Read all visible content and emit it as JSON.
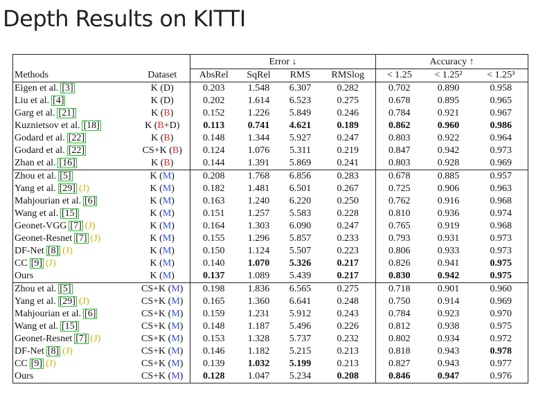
{
  "title": "Depth Results on KITTI",
  "table": {
    "group_headers": [
      "Error ↓",
      "Accuracy ↑"
    ],
    "columns": [
      "Methods",
      "Dataset",
      "AbsRel",
      "SqRel",
      "RMS",
      "RMSlog",
      "< 1.25",
      "< 1.25²",
      "< 1.25³"
    ],
    "label_colors": {
      "B": "#d42a2a",
      "M": "#2a4fd4"
    },
    "sections": [
      {
        "rows": [
          {
            "method": "Eigen et al.",
            "ref": "[3]",
            "dataset": [
              "K (D)"
            ],
            "values": [
              "0.203",
              "1.548",
              "6.307",
              "0.282",
              "0.702",
              "0.890",
              "0.958"
            ],
            "bold": []
          },
          {
            "method": "Liu et al.",
            "ref": "[4]",
            "dataset": [
              "K (D)"
            ],
            "values": [
              "0.202",
              "1.614",
              "6.523",
              "0.275",
              "0.678",
              "0.895",
              "0.965"
            ],
            "bold": []
          },
          {
            "method": "Garg et al.",
            "ref": "[21]",
            "dataset": [
              "K (",
              "B",
              ")"
            ],
            "values": [
              "0.152",
              "1.226",
              "5.849",
              "0.246",
              "0.784",
              "0.921",
              "0.967"
            ],
            "bold": []
          },
          {
            "method": "Kuznietsov et al.",
            "ref": "[18]",
            "dataset": [
              "K (",
              "B",
              "+D)"
            ],
            "values": [
              "0.113",
              "0.741",
              "4.621",
              "0.189",
              "0.862",
              "0.960",
              "0.986"
            ],
            "bold": [
              0,
              1,
              2,
              3,
              4,
              5,
              6
            ]
          },
          {
            "method": "Godard et al.",
            "ref": "[22]",
            "dataset": [
              "K (",
              "B",
              ")"
            ],
            "values": [
              "0.148",
              "1.344",
              "5.927",
              "0.247",
              "0.803",
              "0.922",
              "0.964"
            ],
            "bold": []
          },
          {
            "method": "Godard et al.",
            "ref": "[22]",
            "dataset": [
              "CS+K (",
              "B",
              ")"
            ],
            "values": [
              "0.124",
              "1.076",
              "5.311",
              "0.219",
              "0.847",
              "0.942",
              "0.973"
            ],
            "bold": []
          },
          {
            "method": "Zhan et al.",
            "ref": "[16]",
            "dataset": [
              "K (",
              "B",
              ")"
            ],
            "values": [
              "0.144",
              "1.391",
              "5.869",
              "0.241",
              "0.803",
              "0.928",
              "0.969"
            ],
            "bold": []
          }
        ]
      },
      {
        "rows": [
          {
            "method": "Zhou et al.",
            "ref": "[5]",
            "dataset": [
              "K (",
              "M",
              ")"
            ],
            "values": [
              "0.208",
              "1.768",
              "6.856",
              "0.283",
              "0.678",
              "0.885",
              "0.957"
            ],
            "bold": []
          },
          {
            "method": "Yang et al.",
            "ref": "[29]",
            "joint": "(J)",
            "dataset": [
              "K (",
              "M",
              ")"
            ],
            "values": [
              "0.182",
              "1.481",
              "6.501",
              "0.267",
              "0.725",
              "0.906",
              "0.963"
            ],
            "bold": []
          },
          {
            "method": "Mahjourian et al.",
            "ref": "[6]",
            "dataset": [
              "K (",
              "M",
              ")"
            ],
            "values": [
              "0.163",
              "1.240",
              "6.220",
              "0.250",
              "0.762",
              "0.916",
              "0.968"
            ],
            "bold": []
          },
          {
            "method": "Wang et al.",
            "ref": "[15]",
            "dataset": [
              "K (",
              "M",
              ")"
            ],
            "values": [
              "0.151",
              "1.257",
              "5.583",
              "0.228",
              "0.810",
              "0.936",
              "0.974"
            ],
            "bold": []
          },
          {
            "method": "Geonet-VGG",
            "ref": "[7]",
            "joint": "(J)",
            "dataset": [
              "K (",
              "M",
              ")"
            ],
            "values": [
              "0.164",
              "1.303",
              "6.090",
              "0.247",
              "0.765",
              "0.919",
              "0.968"
            ],
            "bold": []
          },
          {
            "method": "Geonet-Resnet",
            "ref": "[7]",
            "joint": "(J)",
            "dataset": [
              "K (",
              "M",
              ")"
            ],
            "values": [
              "0.155",
              "1.296",
              "5.857",
              "0.233",
              "0.793",
              "0.931",
              "0.973"
            ],
            "bold": []
          },
          {
            "method": "DF-Net",
            "ref": "[8]",
            "joint": "(J)",
            "dataset": [
              "K (",
              "M",
              ")"
            ],
            "values": [
              "0.150",
              "1.124",
              "5.507",
              "0.223",
              "0.806",
              "0.933",
              "0.973"
            ],
            "bold": []
          },
          {
            "method": "CC",
            "ref": "[9]",
            "joint": "(J)",
            "dataset": [
              "K (",
              "M",
              ")"
            ],
            "values": [
              "0.140",
              "1.070",
              "5.326",
              "0.217",
              "0.826",
              "0.941",
              "0.975"
            ],
            "bold": [
              1,
              2,
              3,
              6
            ]
          },
          {
            "method": "Ours",
            "dataset": [
              "K (",
              "M",
              ")"
            ],
            "values": [
              "0.137",
              "1.089",
              "5.439",
              "0.217",
              "0.830",
              "0.942",
              "0.975"
            ],
            "bold": [
              0,
              3,
              4,
              5,
              6
            ]
          }
        ]
      },
      {
        "rows": [
          {
            "method": "Zhou et al.",
            "ref": "[5]",
            "dataset": [
              "CS+K (",
              "M",
              ")"
            ],
            "values": [
              "0.198",
              "1.836",
              "6.565",
              "0.275",
              "0.718",
              "0.901",
              "0.960"
            ],
            "bold": []
          },
          {
            "method": "Yang et al.",
            "ref": "[29]",
            "joint": "(J)",
            "dataset": [
              "CS+K (",
              "M",
              ")"
            ],
            "values": [
              "0.165",
              "1.360",
              "6.641",
              "0.248",
              "0.750",
              "0.914",
              "0.969"
            ],
            "bold": []
          },
          {
            "method": "Mahjourian et al.",
            "ref": "[6]",
            "dataset": [
              "CS+K (",
              "M",
              ")"
            ],
            "values": [
              "0.159",
              "1.231",
              "5.912",
              "0.243",
              "0.784",
              "0.923",
              "0.970"
            ],
            "bold": []
          },
          {
            "method": "Wang et al.",
            "ref": "[15]",
            "dataset": [
              "CS+K (",
              "M",
              ")"
            ],
            "values": [
              "0.148",
              "1.187",
              "5.496",
              "0.226",
              "0.812",
              "0.938",
              "0.975"
            ],
            "bold": []
          },
          {
            "method": "Geonet-Resnet",
            "ref": "[7]",
            "joint": "(J)",
            "dataset": [
              "CS+K (",
              "M",
              ")"
            ],
            "values": [
              "0.153",
              "1.328",
              "5.737",
              "0.232",
              "0.802",
              "0.934",
              "0.972"
            ],
            "bold": []
          },
          {
            "method": "DF-Net",
            "ref": "[8]",
            "joint": "(J)",
            "dataset": [
              "CS+K (",
              "M",
              ")"
            ],
            "values": [
              "0.146",
              "1.182",
              "5.215",
              "0.213",
              "0.818",
              "0.943",
              "0.978"
            ],
            "bold": [
              6
            ]
          },
          {
            "method": "CC",
            "ref": "[9]",
            "joint": "(J)",
            "dataset": [
              "CS+K (",
              "M",
              ")"
            ],
            "values": [
              "0.139",
              "1.032",
              "5.199",
              "0.213",
              "0.827",
              "0.943",
              "0.977"
            ],
            "bold": [
              1,
              2
            ]
          },
          {
            "method": "Ours",
            "dataset": [
              "CS+K (",
              "M",
              ")"
            ],
            "values": [
              "0.128",
              "1.047",
              "5.234",
              "0.208",
              "0.846",
              "0.947",
              "0.976"
            ],
            "bold": [
              0,
              3,
              4,
              5
            ]
          }
        ]
      }
    ]
  }
}
